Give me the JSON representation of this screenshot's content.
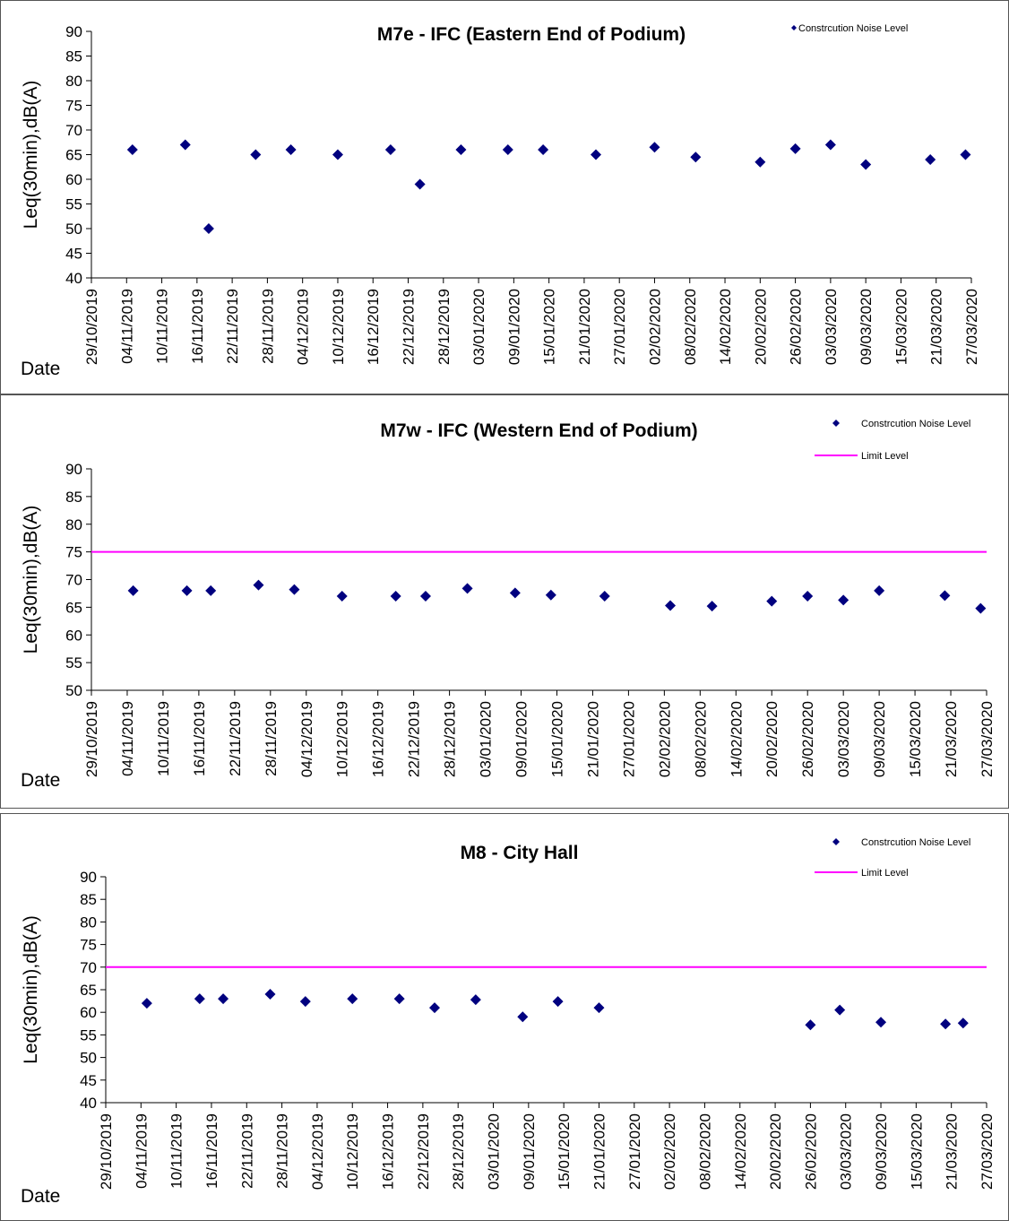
{
  "chart_data": [
    {
      "type": "scatter",
      "title": "M7e - IFC (Eastern End of Podium)",
      "ylabel": "Leq(30min),dB(A)",
      "xlabel": "Date",
      "ylim": [
        40,
        90
      ],
      "yticks": [
        40,
        45,
        50,
        55,
        60,
        65,
        70,
        75,
        80,
        85,
        90
      ],
      "xlim": [
        "2019-10-29",
        "2020-03-27"
      ],
      "xticks": [
        "29/10/2019",
        "04/11/2019",
        "10/11/2019",
        "16/11/2019",
        "22/11/2019",
        "28/11/2019",
        "04/12/2019",
        "10/12/2019",
        "16/12/2019",
        "22/12/2019",
        "28/12/2019",
        "03/01/2020",
        "09/01/2020",
        "15/01/2020",
        "21/01/2020",
        "27/01/2020",
        "02/02/2020",
        "08/02/2020",
        "14/02/2020",
        "20/02/2020",
        "26/02/2020",
        "03/03/2020",
        "09/03/2020",
        "15/03/2020",
        "21/03/2020",
        "27/03/2020"
      ],
      "legend": [
        "Constrcution Noise Level"
      ],
      "legend_position": "top-right",
      "series": [
        {
          "name": "Constrcution Noise Level",
          "color": "#00007f",
          "marker": "diamond",
          "points": [
            {
              "x": "2019-11-05",
              "y": 66.0
            },
            {
              "x": "2019-11-14",
              "y": 67.0
            },
            {
              "x": "2019-11-18",
              "y": 50.0
            },
            {
              "x": "2019-11-26",
              "y": 65.0
            },
            {
              "x": "2019-12-02",
              "y": 66.0
            },
            {
              "x": "2019-12-10",
              "y": 65.0
            },
            {
              "x": "2019-12-19",
              "y": 66.0
            },
            {
              "x": "2019-12-24",
              "y": 59.0
            },
            {
              "x": "2019-12-31",
              "y": 66.0
            },
            {
              "x": "2020-01-08",
              "y": 66.0
            },
            {
              "x": "2020-01-14",
              "y": 66.0
            },
            {
              "x": "2020-01-23",
              "y": 65.0
            },
            {
              "x": "2020-02-02",
              "y": 66.5
            },
            {
              "x": "2020-02-09",
              "y": 64.5
            },
            {
              "x": "2020-02-20",
              "y": 63.5
            },
            {
              "x": "2020-02-26",
              "y": 66.2
            },
            {
              "x": "2020-03-03",
              "y": 67.0
            },
            {
              "x": "2020-03-09",
              "y": 63.0
            },
            {
              "x": "2020-03-20",
              "y": 64.0
            },
            {
              "x": "2020-03-26",
              "y": 65.0
            }
          ]
        }
      ],
      "limit": null
    },
    {
      "type": "scatter",
      "title": "M7w - IFC (Western End of Podium)",
      "ylabel": "Leq(30min),dB(A)",
      "xlabel": "Date",
      "ylim": [
        50,
        90
      ],
      "yticks": [
        50,
        55,
        60,
        65,
        70,
        75,
        80,
        85,
        90
      ],
      "xlim": [
        "2019-10-29",
        "2020-03-27"
      ],
      "xticks": [
        "29/10/2019",
        "04/11/2019",
        "10/11/2019",
        "16/11/2019",
        "22/11/2019",
        "28/11/2019",
        "04/12/2019",
        "10/12/2019",
        "16/12/2019",
        "22/12/2019",
        "28/12/2019",
        "03/01/2020",
        "09/01/2020",
        "15/01/2020",
        "21/01/2020",
        "27/01/2020",
        "02/02/2020",
        "08/02/2020",
        "14/02/2020",
        "20/02/2020",
        "26/02/2020",
        "03/03/2020",
        "09/03/2020",
        "15/03/2020",
        "21/03/2020",
        "27/03/2020"
      ],
      "legend": [
        "Constrcution Noise Level",
        "Limit Level"
      ],
      "legend_position": "top-right",
      "series": [
        {
          "name": "Constrcution Noise Level",
          "color": "#00007f",
          "marker": "diamond",
          "points": [
            {
              "x": "2019-11-05",
              "y": 68.0
            },
            {
              "x": "2019-11-14",
              "y": 68.0
            },
            {
              "x": "2019-11-18",
              "y": 68.0
            },
            {
              "x": "2019-11-26",
              "y": 69.0
            },
            {
              "x": "2019-12-02",
              "y": 68.2
            },
            {
              "x": "2019-12-10",
              "y": 67.0
            },
            {
              "x": "2019-12-19",
              "y": 67.0
            },
            {
              "x": "2019-12-24",
              "y": 67.0
            },
            {
              "x": "2019-12-31",
              "y": 68.4
            },
            {
              "x": "2020-01-08",
              "y": 67.6
            },
            {
              "x": "2020-01-14",
              "y": 67.2
            },
            {
              "x": "2020-01-23",
              "y": 67.0
            },
            {
              "x": "2020-02-03",
              "y": 65.3
            },
            {
              "x": "2020-02-10",
              "y": 65.2
            },
            {
              "x": "2020-02-20",
              "y": 66.1
            },
            {
              "x": "2020-02-26",
              "y": 67.0
            },
            {
              "x": "2020-03-03",
              "y": 66.3
            },
            {
              "x": "2020-03-09",
              "y": 68.0
            },
            {
              "x": "2020-03-20",
              "y": 67.1
            },
            {
              "x": "2020-03-26",
              "y": 64.8
            }
          ]
        }
      ],
      "limit": {
        "name": "Limit Level",
        "value": 75,
        "color": "#ff00ff"
      }
    },
    {
      "type": "scatter",
      "title": "M8 - City Hall",
      "ylabel": "Leq(30min),dB(A)",
      "xlabel": "Date",
      "ylim": [
        40,
        90
      ],
      "yticks": [
        40,
        45,
        50,
        55,
        60,
        65,
        70,
        75,
        80,
        85,
        90
      ],
      "xlim": [
        "2019-10-29",
        "2020-03-27"
      ],
      "xticks": [
        "29/10/2019",
        "04/11/2019",
        "10/11/2019",
        "16/11/2019",
        "22/11/2019",
        "28/11/2019",
        "04/12/2019",
        "10/12/2019",
        "16/12/2019",
        "22/12/2019",
        "28/12/2019",
        "03/01/2020",
        "09/01/2020",
        "15/01/2020",
        "21/01/2020",
        "27/01/2020",
        "02/02/2020",
        "08/02/2020",
        "14/02/2020",
        "20/02/2020",
        "26/02/2020",
        "03/03/2020",
        "09/03/2020",
        "15/03/2020",
        "21/03/2020",
        "27/03/2020"
      ],
      "legend": [
        "Constrcution Noise Level",
        "Limit Level"
      ],
      "legend_position": "top-right",
      "series": [
        {
          "name": "Constrcution Noise Level",
          "color": "#00007f",
          "marker": "diamond",
          "points": [
            {
              "x": "2019-11-05",
              "y": 62.0
            },
            {
              "x": "2019-11-14",
              "y": 63.0
            },
            {
              "x": "2019-11-18",
              "y": 63.0
            },
            {
              "x": "2019-11-26",
              "y": 64.0
            },
            {
              "x": "2019-12-02",
              "y": 62.4
            },
            {
              "x": "2019-12-10",
              "y": 63.0
            },
            {
              "x": "2019-12-18",
              "y": 63.0
            },
            {
              "x": "2019-12-24",
              "y": 61.0
            },
            {
              "x": "2019-12-31",
              "y": 62.8
            },
            {
              "x": "2020-01-08",
              "y": 59.0
            },
            {
              "x": "2020-01-14",
              "y": 62.4
            },
            {
              "x": "2020-01-21",
              "y": 61.0
            },
            {
              "x": "2020-02-26",
              "y": 57.2
            },
            {
              "x": "2020-03-02",
              "y": 60.5
            },
            {
              "x": "2020-03-09",
              "y": 57.8
            },
            {
              "x": "2020-03-20",
              "y": 57.4
            },
            {
              "x": "2020-03-23",
              "y": 57.6
            }
          ]
        }
      ],
      "limit": {
        "name": "Limit Level",
        "value": 70,
        "color": "#ff00ff"
      }
    }
  ]
}
